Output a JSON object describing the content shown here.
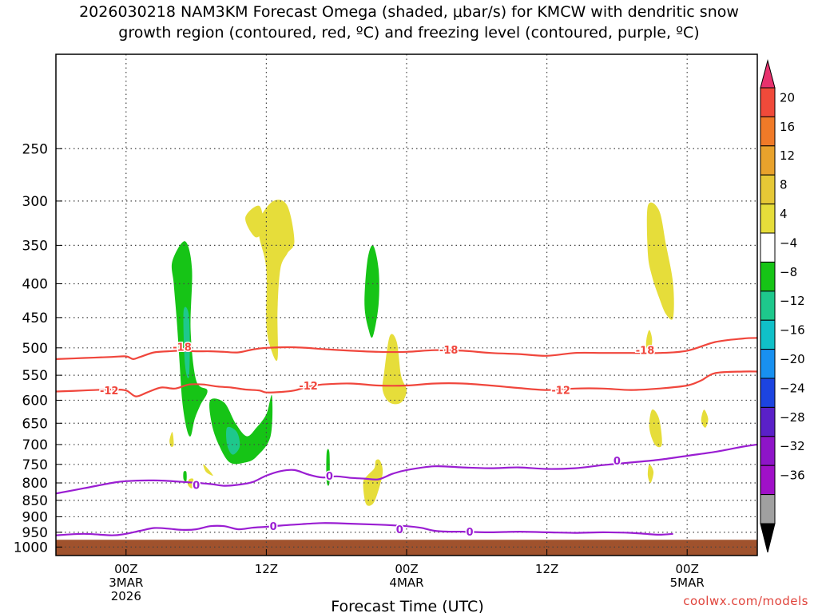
{
  "chart_data": {
    "type": "heatmap",
    "title_line1": "2026030218 NAM3KM Forecast Omega (shaded, μbar/s) for KMCW with dendritic snow",
    "title_line2": "growth region (contoured, red, ºC) and freezing level (contoured, purple, ºC)",
    "xlabel": "Forecast Time (UTC)",
    "ylabel": "",
    "credit": "coolwx.com/models",
    "x_range_hours": [
      -5,
      45
    ],
    "x_ticks": [
      {
        "hour": 0,
        "lines": [
          "00Z",
          "3MAR",
          "2026"
        ]
      },
      {
        "hour": 10,
        "lines": [
          "12Z",
          "",
          ""
        ]
      },
      {
        "hour": 20,
        "lines": [
          "00Z",
          "4MAR",
          ""
        ]
      },
      {
        "hour": 30,
        "lines": [
          "12Z",
          "",
          ""
        ]
      },
      {
        "hour": 40,
        "lines": [
          "00Z",
          "5MAR",
          ""
        ]
      }
    ],
    "y_range_hpa": [
      1030,
      180
    ],
    "y_ticks": [
      250,
      300,
      350,
      400,
      450,
      500,
      550,
      600,
      650,
      700,
      750,
      800,
      850,
      900,
      950,
      1000
    ],
    "colorbar": {
      "labels": [
        "20",
        "16",
        "12",
        "8",
        "4",
        "−4",
        "−8",
        "−12",
        "−16",
        "−20",
        "−24",
        "−28",
        "−32",
        "−36"
      ],
      "colors": [
        "#e8326e",
        "#f04a3a",
        "#f07a28",
        "#e8a22c",
        "#e6c836",
        "#e6dd3a",
        "#ffffff",
        "#16c416",
        "#1ec88c",
        "#10c0c8",
        "#1890f0",
        "#1c44e0",
        "#5a20c8",
        "#8e14c8",
        "#a010c8",
        "#a0a0a0",
        "#000000"
      ]
    },
    "series": [
      {
        "name": "-18 C isotherm",
        "color": "#f0463c",
        "label": "-18",
        "points": [
          [
            -5,
            520
          ],
          [
            -3,
            518
          ],
          [
            -1,
            516
          ],
          [
            0,
            515
          ],
          [
            0.5,
            520
          ],
          [
            1,
            516
          ],
          [
            2,
            508
          ],
          [
            3,
            506
          ],
          [
            4,
            505
          ],
          [
            5,
            506
          ],
          [
            6,
            506
          ],
          [
            7,
            507
          ],
          [
            8,
            508
          ],
          [
            9,
            503
          ],
          [
            10,
            500
          ],
          [
            12,
            499
          ],
          [
            14,
            502
          ],
          [
            16,
            505
          ],
          [
            18,
            507
          ],
          [
            20,
            507
          ],
          [
            22,
            504
          ],
          [
            24,
            505
          ],
          [
            26,
            509
          ],
          [
            28,
            511
          ],
          [
            30,
            514
          ],
          [
            32,
            509
          ],
          [
            34,
            509
          ],
          [
            36,
            509
          ],
          [
            38,
            509
          ],
          [
            40,
            505
          ],
          [
            42,
            490
          ],
          [
            44,
            484
          ],
          [
            45,
            483
          ]
        ],
        "label_at": [
          [
            4,
            498
          ],
          [
            23,
            503
          ],
          [
            37,
            504
          ]
        ]
      },
      {
        "name": "-12 C isotherm",
        "color": "#f0463c",
        "label": "-12",
        "points": [
          [
            -5,
            582
          ],
          [
            -3,
            580
          ],
          [
            -1,
            578
          ],
          [
            0,
            580
          ],
          [
            0.7,
            592
          ],
          [
            1.5,
            584
          ],
          [
            2.5,
            574
          ],
          [
            3.5,
            576
          ],
          [
            4.5,
            568
          ],
          [
            5.5,
            568
          ],
          [
            6.5,
            572
          ],
          [
            7.5,
            574
          ],
          [
            8.5,
            578
          ],
          [
            9.5,
            580
          ],
          [
            10,
            584
          ],
          [
            11,
            583
          ],
          [
            12,
            580
          ],
          [
            13,
            572
          ],
          [
            14,
            568
          ],
          [
            16,
            566
          ],
          [
            18,
            570
          ],
          [
            20,
            570
          ],
          [
            22,
            566
          ],
          [
            24,
            566
          ],
          [
            26,
            570
          ],
          [
            28,
            575
          ],
          [
            30,
            579
          ],
          [
            32,
            576
          ],
          [
            34,
            576
          ],
          [
            36,
            579
          ],
          [
            38,
            576
          ],
          [
            40,
            570
          ],
          [
            41,
            560
          ],
          [
            42,
            546
          ],
          [
            44,
            543
          ],
          [
            45,
            543
          ]
        ],
        "label_at": [
          [
            -1.2,
            580
          ],
          [
            13,
            570
          ],
          [
            31,
            579
          ]
        ]
      },
      {
        "name": "0 C freezing level 1",
        "color": "#9a1ed2",
        "label": "0",
        "points": [
          [
            -5,
            960
          ],
          [
            -3,
            955
          ],
          [
            -1,
            960
          ],
          [
            0,
            955
          ],
          [
            1,
            945
          ],
          [
            2,
            936
          ],
          [
            3,
            938
          ],
          [
            4,
            942
          ],
          [
            5,
            940
          ],
          [
            6,
            930
          ],
          [
            7,
            930
          ],
          [
            8,
            940
          ],
          [
            9,
            935
          ],
          [
            10,
            932
          ],
          [
            11,
            928
          ],
          [
            12,
            925
          ],
          [
            14,
            920
          ],
          [
            16,
            922
          ],
          [
            18,
            925
          ],
          [
            20,
            930
          ],
          [
            21,
            935
          ],
          [
            22,
            945
          ],
          [
            23,
            948
          ],
          [
            24,
            948
          ],
          [
            26,
            950
          ],
          [
            28,
            948
          ],
          [
            30,
            950
          ],
          [
            32,
            952
          ],
          [
            34,
            950
          ],
          [
            36,
            952
          ],
          [
            37,
            955
          ],
          [
            38,
            958
          ],
          [
            39,
            955
          ]
        ],
        "label_at": [
          [
            10.5,
            930
          ],
          [
            19.5,
            940
          ],
          [
            24.5,
            948
          ]
        ]
      },
      {
        "name": "0 C freezing level 2",
        "color": "#9a1ed2",
        "label": "0",
        "points": [
          [
            -5,
            830
          ],
          [
            -3,
            815
          ],
          [
            -1,
            800
          ],
          [
            0,
            795
          ],
          [
            2,
            793
          ],
          [
            4,
            797
          ],
          [
            6,
            803
          ],
          [
            7,
            808
          ],
          [
            8,
            805
          ],
          [
            9,
            798
          ],
          [
            10,
            780
          ],
          [
            11,
            768
          ],
          [
            12,
            765
          ],
          [
            13,
            777
          ],
          [
            14,
            785
          ],
          [
            15,
            782
          ],
          [
            16,
            786
          ],
          [
            17,
            788
          ],
          [
            18,
            790
          ],
          [
            19,
            775
          ],
          [
            20,
            765
          ],
          [
            22,
            755
          ],
          [
            24,
            758
          ],
          [
            26,
            760
          ],
          [
            28,
            758
          ],
          [
            30,
            762
          ],
          [
            32,
            760
          ],
          [
            34,
            752
          ],
          [
            36,
            745
          ],
          [
            38,
            738
          ],
          [
            40,
            728
          ],
          [
            42,
            718
          ],
          [
            44,
            705
          ],
          [
            45,
            700
          ]
        ],
        "label_at": [
          [
            5,
            805
          ],
          [
            14.5,
            780
          ],
          [
            35,
            740
          ]
        ]
      }
    ],
    "shaded_regions": [
      {
        "value": 6,
        "color": "#e6dd3a",
        "points": [
          [
            9.5,
            320
          ],
          [
            10.5,
            300
          ],
          [
            11.5,
            305
          ],
          [
            12,
            345
          ],
          [
            11.5,
            360
          ],
          [
            11,
            380
          ],
          [
            10.8,
            440
          ],
          [
            10.8,
            520
          ],
          [
            10.3,
            500
          ],
          [
            10,
            460
          ],
          [
            10,
            380
          ],
          [
            9.5,
            340
          ]
        ]
      },
      {
        "value": 6,
        "color": "#e6dd3a",
        "points": [
          [
            8.5,
            318
          ],
          [
            9.5,
            305
          ],
          [
            9.8,
            330
          ],
          [
            9.2,
            340
          ]
        ]
      },
      {
        "value": 6,
        "color": "#e6dd3a",
        "points": [
          [
            37.2,
            305
          ],
          [
            38,
            310
          ],
          [
            38.5,
            350
          ],
          [
            39,
            400
          ],
          [
            39,
            450
          ],
          [
            38.5,
            445
          ],
          [
            38,
            420
          ],
          [
            37.5,
            390
          ],
          [
            37.2,
            360
          ]
        ]
      },
      {
        "value": 6,
        "color": "#e6dd3a",
        "points": [
          [
            37.3,
            470
          ],
          [
            37.5,
            485
          ],
          [
            37.4,
            505
          ],
          [
            37.1,
            500
          ],
          [
            37.1,
            485
          ]
        ]
      },
      {
        "value": 6,
        "color": "#e6dd3a",
        "points": [
          [
            37.5,
            620
          ],
          [
            38,
            640
          ],
          [
            38.2,
            700
          ],
          [
            37.7,
            700
          ],
          [
            37.3,
            660
          ]
        ]
      },
      {
        "value": 6,
        "color": "#e6dd3a",
        "points": [
          [
            41.2,
            620
          ],
          [
            41.5,
            640
          ],
          [
            41.3,
            660
          ],
          [
            41,
            645
          ]
        ]
      },
      {
        "value": 6,
        "color": "#e6dd3a",
        "points": [
          [
            18.4,
            545
          ],
          [
            18.8,
            480
          ],
          [
            19.3,
            490
          ],
          [
            19.6,
            550
          ],
          [
            20,
            580
          ],
          [
            19.6,
            605
          ],
          [
            18.8,
            605
          ],
          [
            18.3,
            580
          ]
        ]
      },
      {
        "value": 6,
        "color": "#e6dd3a",
        "points": [
          [
            16.9,
            800
          ],
          [
            17.2,
            780
          ],
          [
            17.7,
            760
          ],
          [
            17.8,
            740
          ],
          [
            18.1,
            740
          ],
          [
            18.3,
            770
          ],
          [
            18,
            820
          ],
          [
            17.6,
            860
          ],
          [
            17.1,
            860
          ]
        ]
      },
      {
        "value": 6,
        "color": "#e6dd3a",
        "points": [
          [
            3.1,
            690
          ],
          [
            3.3,
            670
          ],
          [
            3.4,
            700
          ],
          [
            3.2,
            705
          ]
        ]
      },
      {
        "value": 6,
        "color": "#e6dd3a",
        "points": [
          [
            5.5,
            750
          ],
          [
            5.8,
            760
          ],
          [
            6.2,
            780
          ],
          [
            5.7,
            770
          ]
        ]
      },
      {
        "value": 6,
        "color": "#e6dd3a",
        "points": [
          [
            4.5,
            790
          ],
          [
            4.8,
            790
          ],
          [
            4.7,
            815
          ],
          [
            4.4,
            805
          ]
        ]
      },
      {
        "value": 6,
        "color": "#e6dd3a",
        "points": [
          [
            37.3,
            750
          ],
          [
            37.6,
            770
          ],
          [
            37.4,
            800
          ],
          [
            37.2,
            780
          ]
        ]
      },
      {
        "value": -6,
        "color": "#16c416",
        "points": [
          [
            3.3,
            370
          ],
          [
            4.2,
            345
          ],
          [
            4.7,
            380
          ],
          [
            4.6,
            470
          ],
          [
            5,
            560
          ],
          [
            5.8,
            580
          ],
          [
            5.3,
            610
          ],
          [
            4.9,
            640
          ],
          [
            4.6,
            680
          ],
          [
            4.3,
            660
          ],
          [
            4,
            600
          ],
          [
            3.8,
            520
          ],
          [
            3.6,
            450
          ],
          [
            3.4,
            400
          ]
        ]
      },
      {
        "value": -6,
        "color": "#16c416",
        "points": [
          [
            6,
            600
          ],
          [
            7,
            605
          ],
          [
            7.8,
            650
          ],
          [
            8.6,
            680
          ],
          [
            9.3,
            660
          ],
          [
            10,
            630
          ],
          [
            10.4,
            590
          ],
          [
            10.3,
            680
          ],
          [
            9.3,
            730
          ],
          [
            8.5,
            745
          ],
          [
            7.4,
            745
          ],
          [
            6.6,
            700
          ],
          [
            6.1,
            650
          ]
        ]
      },
      {
        "value": -6,
        "color": "#16c416",
        "points": [
          [
            17.2,
            370
          ],
          [
            17.6,
            350
          ],
          [
            18,
            380
          ],
          [
            18,
            430
          ],
          [
            17.6,
            480
          ],
          [
            17.3,
            470
          ],
          [
            17,
            430
          ]
        ]
      },
      {
        "value": -6,
        "color": "#16c416",
        "points": [
          [
            14.3,
            720
          ],
          [
            14.5,
            720
          ],
          [
            14.5,
            800
          ],
          [
            14.3,
            795
          ]
        ]
      },
      {
        "value": -6,
        "color": "#16c416",
        "points": [
          [
            4.1,
            770
          ],
          [
            4.3,
            770
          ],
          [
            4.3,
            795
          ],
          [
            4.1,
            790
          ]
        ]
      },
      {
        "value": -10,
        "color": "#1ec88c",
        "points": [
          [
            7.2,
            660
          ],
          [
            7.9,
            670
          ],
          [
            8.1,
            705
          ],
          [
            7.6,
            725
          ],
          [
            7.2,
            700
          ]
        ]
      },
      {
        "value": -10,
        "color": "#1ec88c",
        "points": [
          [
            4.1,
            440
          ],
          [
            4.5,
            450
          ],
          [
            4.5,
            550
          ],
          [
            4.2,
            530
          ]
        ]
      }
    ],
    "ground": {
      "color": "#a0522d",
      "from_hpa": 975
    }
  }
}
